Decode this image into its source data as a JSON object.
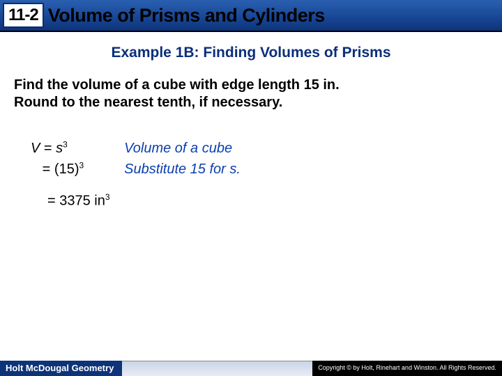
{
  "header": {
    "lesson_number": "11-2",
    "title": "Volume of Prisms and Cylinders"
  },
  "example": {
    "title": "Example 1B: Finding Volumes of Prisms",
    "problem_line1": "Find the volume of a cube with edge length 15 in.",
    "problem_line2": "Round to the nearest tenth, if necessary."
  },
  "work": {
    "eq1_lhs": "V",
    "eq1_eq": " = ",
    "eq1_rhs_base": "s",
    "eq1_rhs_exp": "3",
    "eq2_prefix": "   = (15)",
    "eq2_exp": "3",
    "result_prefix": "= 3375 in",
    "result_exp": "3",
    "explain1": "Volume of a cube",
    "explain2": "Substitute 15 for s."
  },
  "footer": {
    "brand": "Holt McDougal Geometry",
    "copyright": "Copyright © by Holt, Rinehart and Winston. All Rights Reserved."
  }
}
